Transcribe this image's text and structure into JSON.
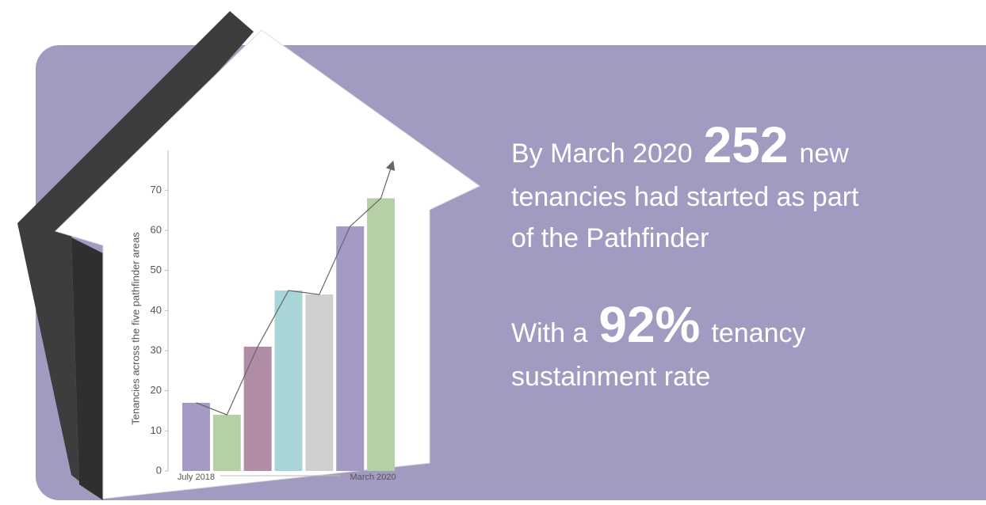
{
  "chart_data": {
    "type": "bar",
    "y_label": "Tenancies across the five pathfinder areas",
    "categories": [
      "July 2018",
      null,
      null,
      null,
      null,
      null,
      "March 2020"
    ],
    "values": [
      17,
      14,
      31,
      45,
      44,
      61,
      68
    ],
    "colors": [
      "#a49ac4",
      "#b5cfa6",
      "#b08ca5",
      "#a8d6d8",
      "#cfcfcf",
      "#a49ac4",
      "#b5cfa6"
    ],
    "ylim": [
      0,
      75
    ],
    "yticks": [
      0,
      10,
      20,
      30,
      40,
      50,
      60,
      70
    ],
    "trend_arrow": true
  },
  "statements": [
    {
      "before": "By March 2020",
      "highlight": "252",
      "after": "new",
      "lines": [
        "tenancies had started as part",
        "of the Pathfinder"
      ]
    },
    {
      "before": "With a",
      "highlight": "92%",
      "after": "tenancy",
      "lines": [
        "sustainment rate"
      ]
    }
  ]
}
